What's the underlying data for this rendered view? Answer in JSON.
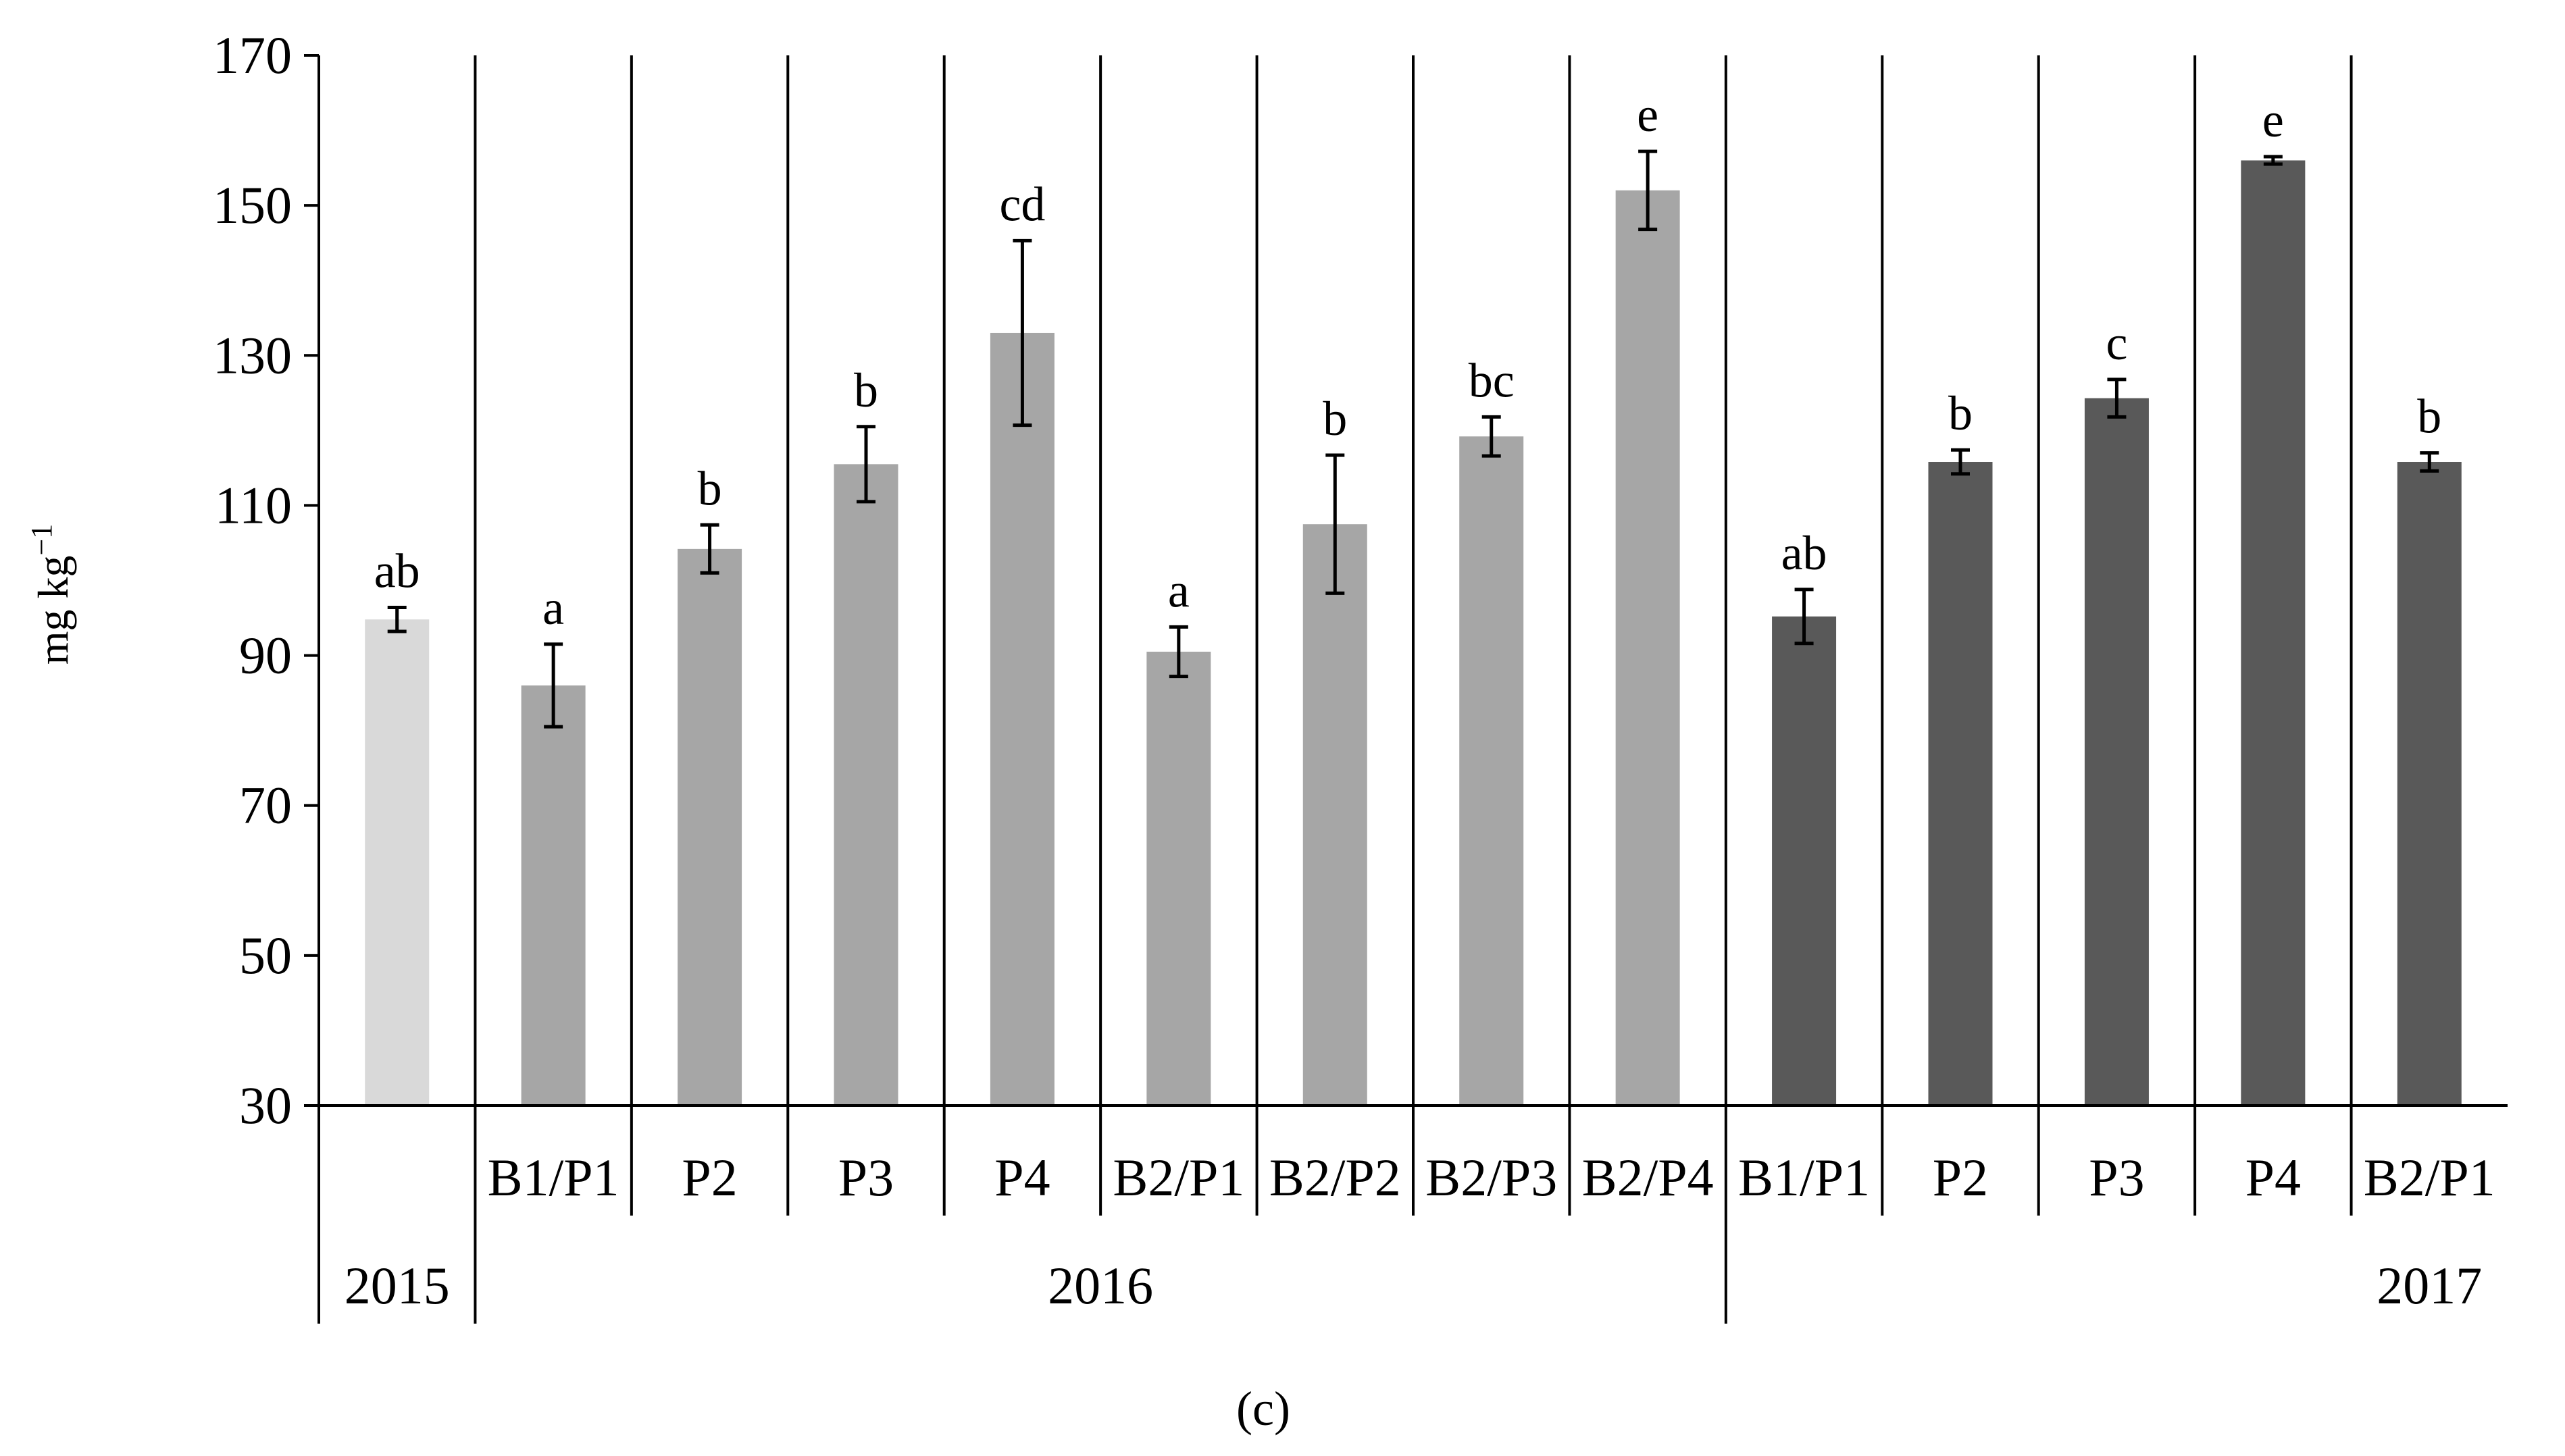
{
  "chart_data": {
    "type": "bar",
    "ylabel": "mg kg",
    "ylabel_sup": "−1",
    "ylim": [
      30,
      170
    ],
    "yticks": [
      30,
      50,
      70,
      90,
      110,
      130,
      150,
      170
    ],
    "caption": "(c)",
    "colors": {
      "2015": "#d9d9d9",
      "2016": "#a6a6a6",
      "2017": "#595959"
    },
    "groups": [
      {
        "label": "2015",
        "year": "2015"
      },
      {
        "label": "2016",
        "year": "2016"
      },
      {
        "label": "2017",
        "year": "2017"
      }
    ],
    "bars": [
      {
        "category": "",
        "year": "2015",
        "value": 94.8,
        "err": 1.6,
        "label": "ab"
      },
      {
        "category": "B1/P1",
        "year": "2016",
        "value": 86.0,
        "err": 5.5,
        "label": "a"
      },
      {
        "category": "P2",
        "year": "2016",
        "value": 104.2,
        "err": 3.2,
        "label": "b"
      },
      {
        "category": "P3",
        "year": "2016",
        "value": 115.5,
        "err": 5.0,
        "label": "b"
      },
      {
        "category": "P4",
        "year": "2016",
        "value": 133.0,
        "err": 12.3,
        "label": "cd"
      },
      {
        "category": "B2/P1",
        "year": "2016",
        "value": 90.5,
        "err": 3.3,
        "label": "a"
      },
      {
        "category": "B2/P2",
        "year": "2016",
        "value": 107.5,
        "err": 9.2,
        "label": "b"
      },
      {
        "category": "B2/P3",
        "year": "2016",
        "value": 119.2,
        "err": 2.6,
        "label": "bc"
      },
      {
        "category": "B2/P4",
        "year": "2016",
        "value": 152.0,
        "err": 5.2,
        "label": "e"
      },
      {
        "category": "B1/P1",
        "year": "2017",
        "value": 95.2,
        "err": 3.6,
        "label": "ab"
      },
      {
        "category": "P2",
        "year": "2017",
        "value": 115.8,
        "err": 1.6,
        "label": "b"
      },
      {
        "category": "P3",
        "year": "2017",
        "value": 124.3,
        "err": 2.5,
        "label": "c"
      },
      {
        "category": "P4",
        "year": "2017",
        "value": 156.0,
        "err": 0.5,
        "label": "e"
      },
      {
        "category": "B2/P1",
        "year": "2017",
        "value": 115.8,
        "err": 1.2,
        "label": "b"
      }
    ]
  }
}
